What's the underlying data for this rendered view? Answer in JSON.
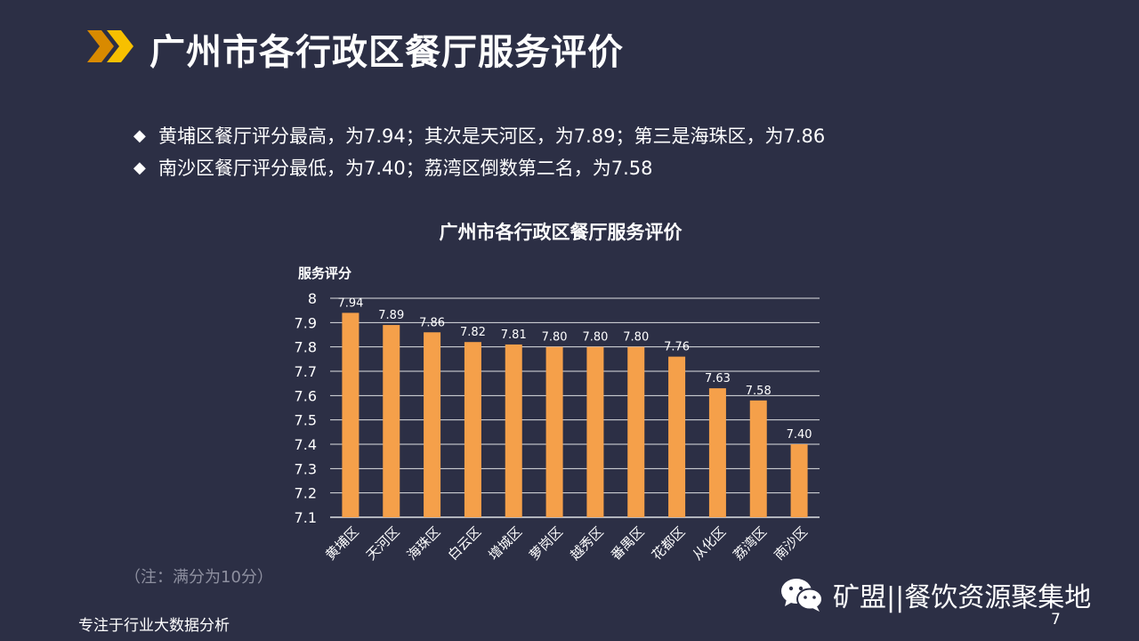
{
  "header": {
    "title": "广州市各行政区餐厅服务评价"
  },
  "bullets": [
    "黄埔区餐厅评分最高，为7.94；其次是天河区，为7.89；第三是海珠区，为7.86",
    "南沙区餐厅评分最低，为7.40；荔湾区倒数第二名，为7.58"
  ],
  "bullet_symbol": "◆",
  "note": "（注：满分为10分）",
  "footer": {
    "text": "专注于行业大数据分析",
    "page": "7"
  },
  "watermark": {
    "text": "矿盟||餐饮资源聚集地",
    "icon": "wechat-icon"
  },
  "colors": {
    "background": "#2c2f45",
    "bar": "#f5a04a",
    "chevron_dark": "#d98a00",
    "chevron_light": "#f7c000"
  },
  "chart_data": {
    "type": "bar",
    "title": "广州市各行政区餐厅服务评价",
    "ylabel": "服务评分",
    "xlabel": "",
    "categories": [
      "黄埔区",
      "天河区",
      "海珠区",
      "白云区",
      "增城区",
      "萝岗区",
      "越秀区",
      "番禺区",
      "花都区",
      "从化区",
      "荔湾区",
      "南沙区"
    ],
    "values": [
      7.94,
      7.89,
      7.86,
      7.82,
      7.81,
      7.8,
      7.8,
      7.8,
      7.76,
      7.63,
      7.58,
      7.4
    ],
    "value_labels": [
      "7.94",
      "7.89",
      "7.86",
      "7.82",
      "7.81",
      "7.80",
      "7.80",
      "7.80",
      "7.76",
      "7.63",
      "7.58",
      "7.40"
    ],
    "ylim": [
      7.1,
      8
    ],
    "yticks": [
      "8",
      "7.9",
      "7.8",
      "7.7",
      "7.6",
      "7.5",
      "7.4",
      "7.3",
      "7.2",
      "7.1"
    ],
    "grid": true,
    "legend": "none"
  }
}
